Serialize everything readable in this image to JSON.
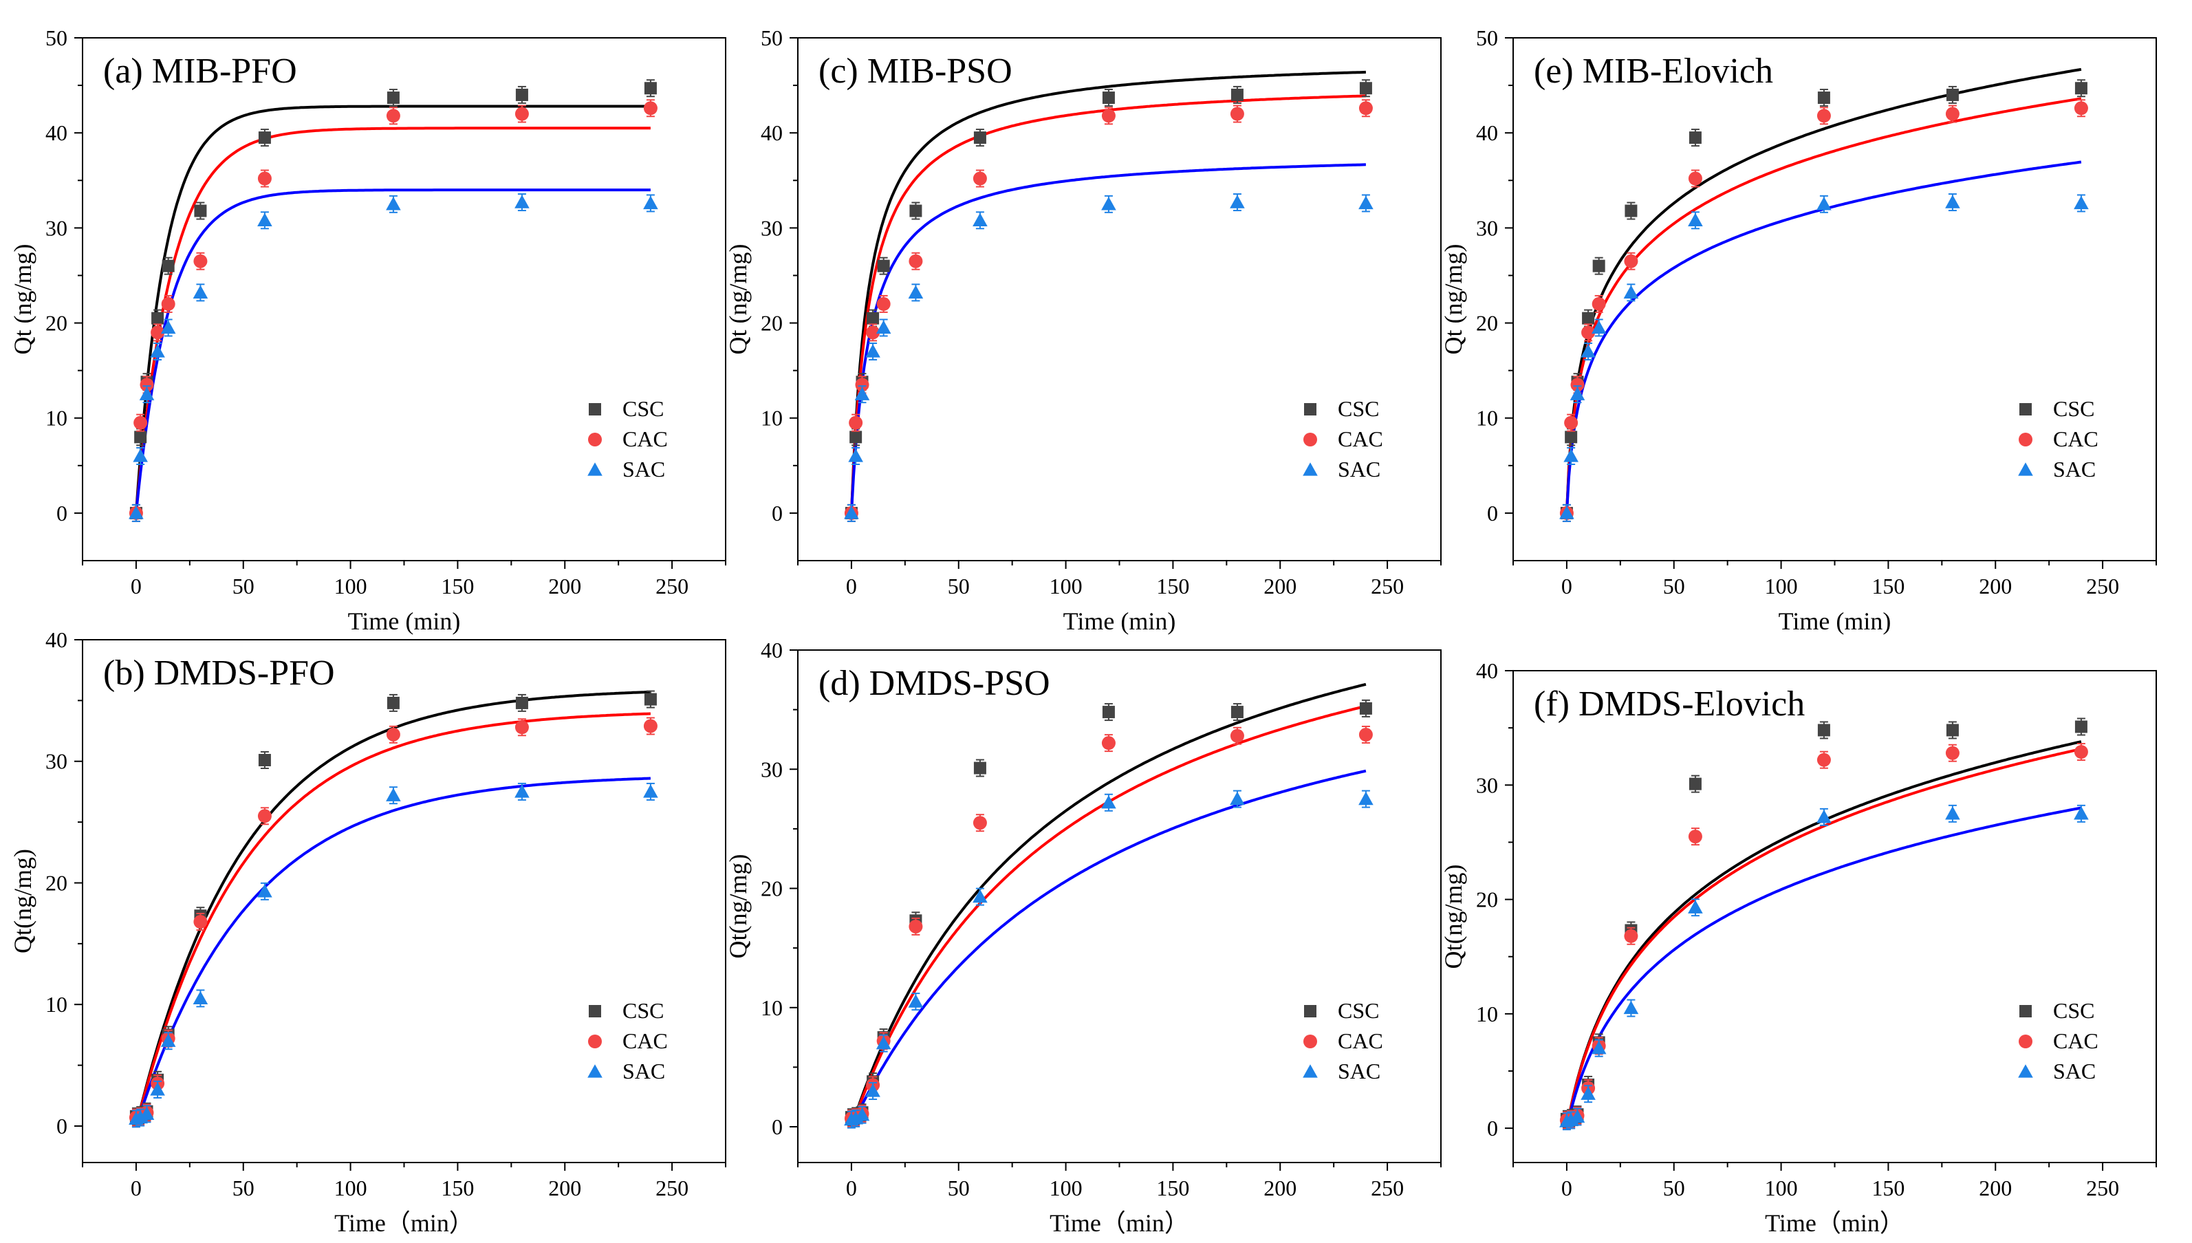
{
  "figure": {
    "series_styles": [
      {
        "name": "CSC",
        "color": "#000000",
        "marker_color": "#444444",
        "marker": "square"
      },
      {
        "name": "CAC",
        "color": "#ff0000",
        "marker_color": "#f24545",
        "marker": "circle"
      },
      {
        "name": "SAC",
        "color": "#0000ff",
        "marker_color": "#1e82e6",
        "marker": "triangle"
      }
    ]
  },
  "chart_data": [
    {
      "id": "a",
      "type": "scatter",
      "title": "(a) MIB-PFO",
      "model": "PFO",
      "xlabel": "Time (min)",
      "ylabel": "Qt (ng/mg)",
      "xlim": [
        -25,
        275
      ],
      "ylim": [
        -5,
        50
      ],
      "xticks": [
        0,
        50,
        100,
        150,
        200,
        250
      ],
      "yticks": [
        0,
        10,
        20,
        30,
        40,
        50
      ],
      "xtick_labels": [
        "0",
        "50",
        "100",
        "150",
        "200",
        "250"
      ],
      "ytick_labels": [
        "0",
        "10",
        "20",
        "30",
        "40",
        "50"
      ],
      "legend_position": "bottom-right",
      "x": [
        0,
        2,
        5,
        10,
        15,
        30,
        60,
        120,
        180,
        240
      ],
      "series": [
        {
          "name": "CSC",
          "values": [
            0,
            8,
            13.8,
            20.5,
            26,
            31.8,
            39.5,
            43.7,
            44,
            44.7
          ],
          "fit": {
            "qe": 42.8,
            "k": 0.075
          }
        },
        {
          "name": "CAC",
          "values": [
            0,
            9.5,
            13.5,
            19,
            22,
            26.5,
            35.2,
            41.8,
            42,
            42.6
          ],
          "fit": {
            "qe": 40.5,
            "k": 0.06
          }
        },
        {
          "name": "SAC",
          "values": [
            0,
            6,
            12.5,
            17,
            19.5,
            23.2,
            30.8,
            32.5,
            32.7,
            32.6
          ],
          "fit": {
            "qe": 34,
            "k": 0.065
          }
        }
      ]
    },
    {
      "id": "c",
      "type": "scatter",
      "title": "(c) MIB-PSO",
      "model": "PSO",
      "xlabel": "Time (min)",
      "ylabel": "Qt (ng/mg)",
      "xlim": [
        -25,
        275
      ],
      "ylim": [
        -5,
        50
      ],
      "xticks": [
        0,
        50,
        100,
        150,
        200,
        250
      ],
      "yticks": [
        0,
        10,
        20,
        30,
        40,
        50
      ],
      "xtick_labels": [
        "0",
        "50",
        "100",
        "150",
        "200",
        "250"
      ],
      "ytick_labels": [
        "0",
        "10",
        "20",
        "30",
        "40",
        "50"
      ],
      "legend_position": "bottom-right",
      "x": [
        0,
        2,
        5,
        10,
        15,
        30,
        60,
        120,
        180,
        240
      ],
      "series": [
        {
          "name": "CSC",
          "values": [
            0,
            8,
            13.8,
            20.5,
            26,
            31.8,
            39.5,
            43.7,
            44,
            44.7
          ],
          "fit": {
            "qe": 48,
            "k": 0.0025
          }
        },
        {
          "name": "CAC",
          "values": [
            0,
            9.5,
            13.5,
            19,
            22,
            26.5,
            35.2,
            41.8,
            42,
            42.6
          ],
          "fit": {
            "qe": 45.5,
            "k": 0.0025
          }
        },
        {
          "name": "SAC",
          "values": [
            0,
            6,
            12.5,
            17,
            19.5,
            23.2,
            30.8,
            32.5,
            32.7,
            32.6
          ],
          "fit": {
            "qe": 38,
            "k": 0.003
          }
        }
      ]
    },
    {
      "id": "e",
      "type": "scatter",
      "title": "(e) MIB-Elovich",
      "model": "Elovich",
      "xlabel": "Time (min)",
      "ylabel": "Qt (ng/mg)",
      "xlim": [
        -25,
        275
      ],
      "ylim": [
        -5,
        50
      ],
      "xticks": [
        0,
        50,
        100,
        150,
        200,
        250
      ],
      "yticks": [
        0,
        10,
        20,
        30,
        40,
        50
      ],
      "xtick_labels": [
        "0",
        "50",
        "100",
        "150",
        "200",
        "250"
      ],
      "ytick_labels": [
        "0",
        "10",
        "20",
        "30",
        "40",
        "50"
      ],
      "legend_position": "bottom-right",
      "x": [
        0,
        2,
        5,
        10,
        15,
        30,
        60,
        120,
        180,
        240
      ],
      "series": [
        {
          "name": "CSC",
          "values": [
            0,
            8,
            13.8,
            20.5,
            26,
            31.8,
            39.5,
            43.7,
            44,
            44.7
          ],
          "fit": {
            "A": 9.1,
            "B": 0.7
          }
        },
        {
          "name": "CAC",
          "values": [
            0,
            9.5,
            13.5,
            19,
            22,
            26.5,
            35.2,
            41.8,
            42,
            42.6
          ],
          "fit": {
            "A": 8.5,
            "B": 0.7
          }
        },
        {
          "name": "SAC",
          "values": [
            0,
            6,
            12.5,
            17,
            19.5,
            23.2,
            30.8,
            32.5,
            32.7,
            32.6
          ],
          "fit": {
            "A": 7.2,
            "B": 0.7
          }
        }
      ]
    },
    {
      "id": "b",
      "type": "scatter",
      "title": "(b) DMDS-PFO",
      "model": "PFO",
      "xlabel": "Time（min）",
      "ylabel": "Qt(ng/mg)",
      "xlim": [
        -25,
        275
      ],
      "ylim": [
        -3,
        40
      ],
      "xticks": [
        0,
        50,
        100,
        150,
        200,
        250
      ],
      "yticks": [
        0,
        10,
        20,
        30,
        40
      ],
      "xtick_labels": [
        "0",
        "50",
        "100",
        "150",
        "200",
        "250"
      ],
      "ytick_labels": [
        "0",
        "10",
        "20",
        "30",
        "40"
      ],
      "legend_position": "bottom-right",
      "x": [
        0,
        2,
        5,
        10,
        15,
        30,
        60,
        120,
        180,
        240
      ],
      "series": [
        {
          "name": "CSC",
          "values": [
            0.8,
            0.9,
            1.2,
            3.8,
            7.5,
            17.3,
            30.1,
            34.8,
            34.8,
            35.1
          ],
          "fit": {
            "qe": 36,
            "k": 0.02
          }
        },
        {
          "name": "CAC",
          "values": [
            0.7,
            0.8,
            1.1,
            3.5,
            7.2,
            16.8,
            25.5,
            32.2,
            32.8,
            32.9
          ],
          "fit": {
            "qe": 34.2,
            "k": 0.02
          }
        },
        {
          "name": "SAC",
          "values": [
            0.6,
            0.7,
            1.0,
            3.0,
            7.0,
            10.5,
            19.3,
            27.2,
            27.5,
            27.5
          ],
          "fit": {
            "qe": 28.9,
            "k": 0.019
          }
        }
      ]
    },
    {
      "id": "d",
      "type": "scatter",
      "title": "(d) DMDS-PSO",
      "model": "PSO",
      "xlabel": "Time（min）",
      "ylabel": "Qt(ng/mg)",
      "xlim": [
        -25,
        275
      ],
      "ylim": [
        -3,
        40
      ],
      "xticks": [
        0,
        50,
        100,
        150,
        200,
        250
      ],
      "yticks": [
        0,
        10,
        20,
        30,
        40
      ],
      "xtick_labels": [
        "0",
        "50",
        "100",
        "150",
        "200",
        "250"
      ],
      "ytick_labels": [
        "0",
        "10",
        "20",
        "30",
        "40"
      ],
      "legend_position": "bottom-right",
      "x": [
        0,
        2,
        5,
        10,
        15,
        30,
        60,
        120,
        180,
        240
      ],
      "series": [
        {
          "name": "CSC",
          "values": [
            0.8,
            0.9,
            1.2,
            3.8,
            7.5,
            17.3,
            30.1,
            34.8,
            34.8,
            35.1
          ],
          "fit": {
            "qe": 52,
            "k": 0.0002
          }
        },
        {
          "name": "CAC",
          "values": [
            0.7,
            0.8,
            1.1,
            3.5,
            7.2,
            16.8,
            25.5,
            32.2,
            32.8,
            32.9
          ],
          "fit": {
            "qe": 50,
            "k": 0.0002
          }
        },
        {
          "name": "SAC",
          "values": [
            0.6,
            0.7,
            1.0,
            3.0,
            7.0,
            10.5,
            19.3,
            27.2,
            27.5,
            27.5
          ],
          "fit": {
            "qe": 44,
            "k": 0.0002
          }
        }
      ]
    },
    {
      "id": "f",
      "type": "scatter",
      "title": "(f) DMDS-Elovich",
      "model": "Elovich",
      "xlabel": "Time（min）",
      "ylabel": "Qt(ng/mg)",
      "xlim": [
        -25,
        275
      ],
      "ylim": [
        -3,
        40
      ],
      "xticks": [
        0,
        50,
        100,
        150,
        200,
        250
      ],
      "yticks": [
        0,
        10,
        20,
        30,
        40
      ],
      "xtick_labels": [
        "0",
        "50",
        "100",
        "150",
        "200",
        "250"
      ],
      "ytick_labels": [
        "0",
        "10",
        "20",
        "30",
        "40"
      ],
      "legend_position": "bottom-right",
      "x": [
        0,
        2,
        5,
        10,
        15,
        30,
        60,
        120,
        180,
        240
      ],
      "series": [
        {
          "name": "CSC",
          "values": [
            0.8,
            0.9,
            1.2,
            3.8,
            7.5,
            17.3,
            30.1,
            34.8,
            34.8,
            35.1
          ],
          "fit": {
            "A": 10.5,
            "B": 0.1
          }
        },
        {
          "name": "CAC",
          "values": [
            0.7,
            0.8,
            1.1,
            3.5,
            7.2,
            16.8,
            25.5,
            32.2,
            32.8,
            32.9
          ],
          "fit": {
            "A": 10.3,
            "B": 0.1
          }
        },
        {
          "name": "SAC",
          "values": [
            0.6,
            0.7,
            1.0,
            3.0,
            7.0,
            10.5,
            19.3,
            27.2,
            27.5,
            27.5
          ],
          "fit": {
            "A": 8.7,
            "B": 0.1
          }
        }
      ]
    }
  ]
}
